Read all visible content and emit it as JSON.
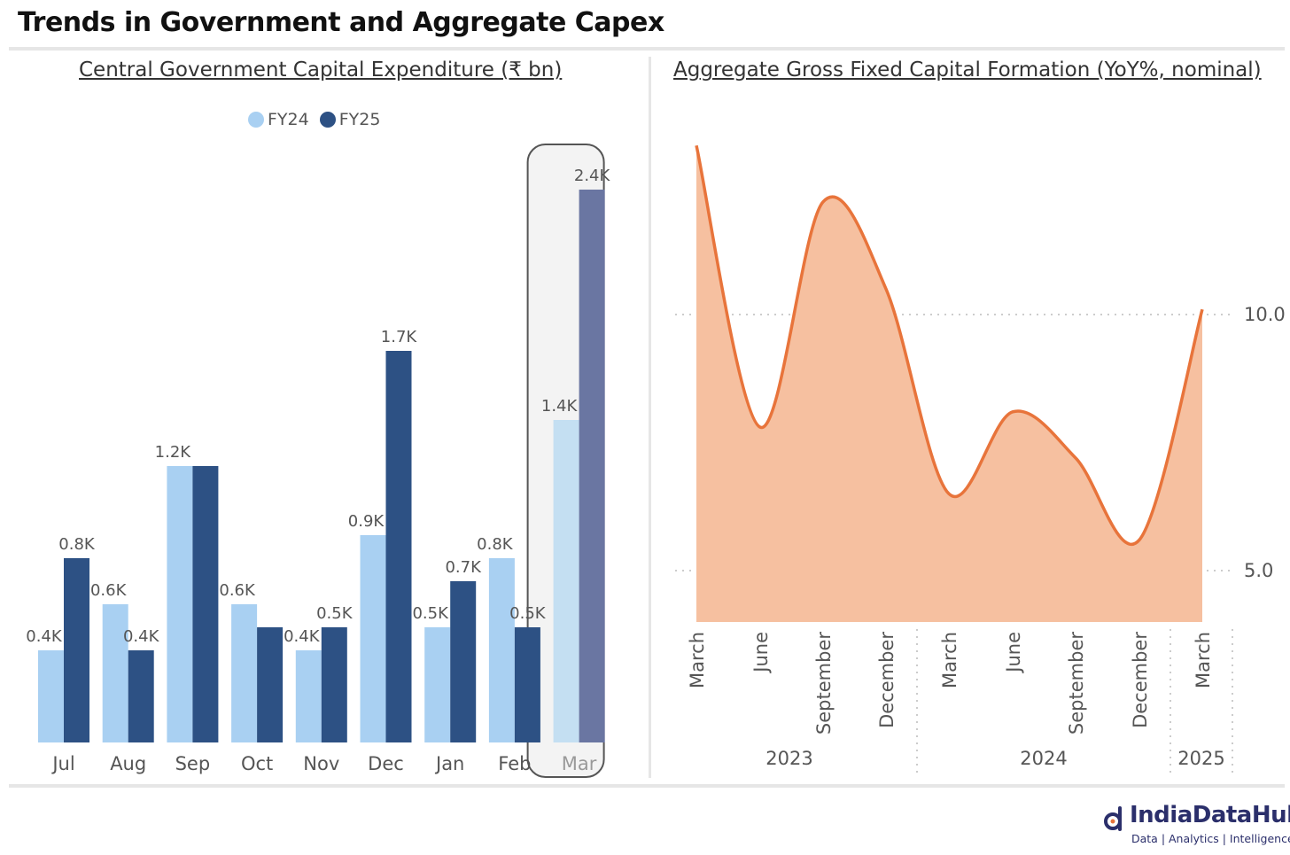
{
  "page": {
    "title": "Trends in Government and Aggregate Capex"
  },
  "left_chart": {
    "title": "Central Government Capital Expenditure (₹ bn)",
    "legend": [
      {
        "label": "FY24",
        "color": "#a9d0f2"
      },
      {
        "label": "FY25",
        "color": "#2d5184"
      }
    ]
  },
  "right_chart": {
    "title": "Aggregate Gross Fixed Capital Formation (YoY%, nominal)"
  },
  "logo": {
    "name": "IndiaDataHub",
    "tagline": "Data | Analytics | Intelligence"
  },
  "chart_data": [
    {
      "type": "bar",
      "title": "Central Government Capital Expenditure (₹ bn)",
      "categories": [
        "Jul",
        "Aug",
        "Sep",
        "Oct",
        "Nov",
        "Dec",
        "Jan",
        "Feb",
        "Mar"
      ],
      "series": [
        {
          "name": "FY24",
          "values": [
            0.4,
            0.6,
            1.2,
            0.6,
            0.4,
            0.9,
            0.5,
            0.8,
            1.4
          ],
          "labels": [
            "0.4K",
            "0.6K",
            "1.2K",
            "0.6K",
            "0.4K",
            "0.9K",
            "0.5K",
            "0.8K",
            "1.4K"
          ]
        },
        {
          "name": "FY25",
          "values": [
            0.8,
            0.4,
            1.2,
            0.5,
            0.5,
            1.7,
            0.7,
            0.5,
            2.4
          ],
          "labels": [
            "0.8K",
            "0.4K",
            "",
            "",
            "0.5K",
            "1.7K",
            "0.7K",
            "0.5K",
            "2.4K"
          ]
        }
      ],
      "ylim": [
        0,
        2.6
      ],
      "highlighted_category": "Mar",
      "legend_position": "top-center",
      "grid": false
    },
    {
      "type": "area",
      "title": "Aggregate Gross Fixed Capital Formation (YoY%, nominal)",
      "x": [
        "March",
        "June",
        "September",
        "December",
        "March",
        "June",
        "September",
        "December",
        "March"
      ],
      "x_groups": [
        {
          "label": "2023",
          "count": 4
        },
        {
          "label": "2024",
          "count": 4
        },
        {
          "label": "2025",
          "count": 1
        }
      ],
      "series": [
        {
          "values": [
            13.3,
            7.8,
            12.2,
            10.5,
            6.5,
            8.1,
            7.2,
            5.6,
            10.1
          ]
        }
      ],
      "y_ticks": [
        "5.0",
        "10.0"
      ],
      "y_tick_values": [
        5,
        10
      ],
      "ylim": [
        4,
        13.5
      ],
      "line_color": "#e8743b",
      "fill_color": "#f6c0a0",
      "grid": true
    }
  ]
}
